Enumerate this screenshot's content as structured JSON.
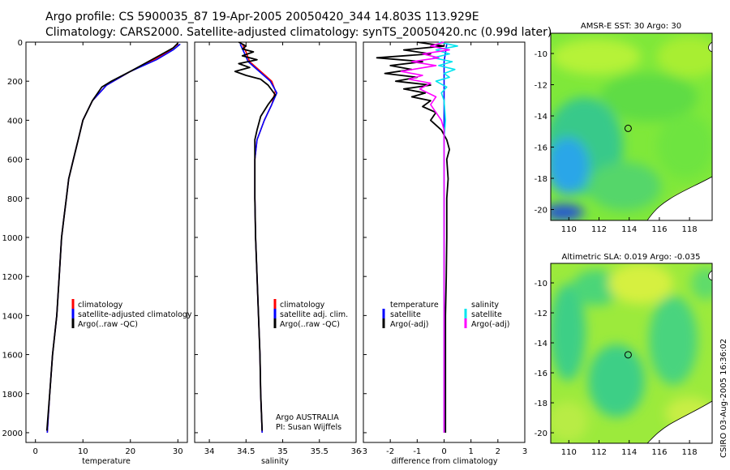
{
  "title_line1": "Argo profile: CS 5900035_87 19-Apr-2005 20050420_344 14.803S 113.929E",
  "title_line2": "Climatology: CARS2000. Satellite-adjusted climatology: synTS_20050420.nc (0.99d later)",
  "credit": "CSIRO 03-Aug-2005 16:36:02",
  "colors": {
    "clim": "#ff0000",
    "sat": "#0000ff",
    "argo": "#000000",
    "cyan": "#00e5ee",
    "magenta": "#ff00ff"
  },
  "chart_data": [
    {
      "name": "temperature-profile",
      "type": "line",
      "xlabel": "temperature",
      "xlim": [
        -2,
        32
      ],
      "ylim": [
        2050,
        0
      ],
      "xticks": [
        "0",
        "10",
        "20",
        "30"
      ],
      "xtick_values": [
        0,
        10,
        20,
        30
      ],
      "yticks": [
        "0",
        "200",
        "400",
        "600",
        "800",
        "1000",
        "1200",
        "1400",
        "1600",
        "1800",
        "2000"
      ],
      "ytick_values": [
        0,
        200,
        400,
        600,
        800,
        1000,
        1200,
        1400,
        1600,
        1800,
        2000
      ],
      "legend": [
        "climatology",
        "satellite-adjusted climatology",
        "Argo(..raw -QC)"
      ],
      "series": [
        {
          "name": "climatology",
          "color": "#ff0000",
          "points": [
            [
              30,
              10
            ],
            [
              28.5,
              40
            ],
            [
              25,
              90
            ],
            [
              20,
              150
            ],
            [
              15,
              220
            ],
            [
              12,
              300
            ],
            [
              10,
              400
            ],
            [
              9,
              500
            ],
            [
              8,
              600
            ],
            [
              7,
              700
            ],
            [
              6.5,
              800
            ],
            [
              6,
              900
            ],
            [
              5.5,
              1000
            ],
            [
              5,
              1200
            ],
            [
              4.5,
              1400
            ],
            [
              3.6,
              1600
            ],
            [
              3,
              1800
            ],
            [
              2.5,
              2000
            ]
          ]
        },
        {
          "name": "satellite-adjusted climatology",
          "color": "#0000ff",
          "points": [
            [
              30.5,
              10
            ],
            [
              29,
              40
            ],
            [
              25.5,
              90
            ],
            [
              20,
              150
            ],
            [
              15,
              220
            ],
            [
              12,
              300
            ],
            [
              10,
              400
            ],
            [
              9,
              500
            ],
            [
              8,
              600
            ],
            [
              7,
              700
            ],
            [
              6.5,
              800
            ],
            [
              6,
              900
            ],
            [
              5.5,
              1000
            ],
            [
              5,
              1200
            ],
            [
              4.5,
              1400
            ],
            [
              3.6,
              1600
            ],
            [
              3,
              1800
            ],
            [
              2.5,
              2000
            ]
          ]
        },
        {
          "name": "Argo(..raw -QC)",
          "color": "#000000",
          "points": [
            [
              30,
              5
            ],
            [
              29,
              30
            ],
            [
              26,
              70
            ],
            [
              23,
              110
            ],
            [
              20,
              150
            ],
            [
              16,
              200
            ],
            [
              14,
              230
            ],
            [
              12,
              300
            ],
            [
              10,
              400
            ],
            [
              9,
              500
            ],
            [
              8,
              600
            ],
            [
              7,
              700
            ],
            [
              6.5,
              800
            ],
            [
              6,
              900
            ],
            [
              5.5,
              1000
            ],
            [
              5,
              1200
            ],
            [
              4.5,
              1400
            ],
            [
              3.6,
              1600
            ],
            [
              3,
              1800
            ],
            [
              2.4,
              1990
            ]
          ]
        }
      ]
    },
    {
      "name": "salinity-profile",
      "type": "line",
      "xlabel": "salinity",
      "xlim": [
        33.8,
        36
      ],
      "ylim": [
        2050,
        0
      ],
      "xticks": [
        "34",
        "34.5",
        "35",
        "35.5",
        "36"
      ],
      "xtick_values": [
        34,
        34.5,
        35,
        35.5,
        36
      ],
      "legend": [
        "climatology",
        "satellite adj. clim.",
        "Argo(..raw -QC)"
      ],
      "annotation": [
        "Argo AUSTRALIA",
        "PI: Susan Wijffels"
      ],
      "series": [
        {
          "name": "climatology",
          "color": "#ff0000",
          "points": [
            [
              34.45,
              10
            ],
            [
              34.5,
              50
            ],
            [
              34.55,
              100
            ],
            [
              34.7,
              150
            ],
            [
              34.85,
              200
            ],
            [
              34.9,
              250
            ],
            [
              34.85,
              320
            ],
            [
              34.75,
              400
            ],
            [
              34.65,
              500
            ],
            [
              34.62,
              600
            ],
            [
              34.62,
              800
            ],
            [
              34.63,
              1000
            ],
            [
              34.65,
              1200
            ],
            [
              34.67,
              1400
            ],
            [
              34.69,
              1600
            ],
            [
              34.7,
              1800
            ],
            [
              34.72,
              2000
            ]
          ]
        },
        {
          "name": "satellite adj. clim.",
          "color": "#0000ff",
          "points": [
            [
              34.42,
              10
            ],
            [
              34.47,
              50
            ],
            [
              34.53,
              100
            ],
            [
              34.68,
              150
            ],
            [
              34.83,
              200
            ],
            [
              34.92,
              260
            ],
            [
              34.85,
              320
            ],
            [
              34.75,
              400
            ],
            [
              34.65,
              500
            ],
            [
              34.62,
              600
            ],
            [
              34.62,
              800
            ],
            [
              34.63,
              1000
            ],
            [
              34.65,
              1200
            ],
            [
              34.67,
              1400
            ],
            [
              34.69,
              1600
            ],
            [
              34.7,
              1800
            ],
            [
              34.72,
              2000
            ]
          ]
        },
        {
          "name": "Argo(..raw -QC)",
          "color": "#000000",
          "points": [
            [
              34.4,
              0
            ],
            [
              34.5,
              20
            ],
            [
              34.45,
              35
            ],
            [
              34.6,
              50
            ],
            [
              34.45,
              70
            ],
            [
              34.65,
              90
            ],
            [
              34.4,
              110
            ],
            [
              34.55,
              130
            ],
            [
              34.35,
              150
            ],
            [
              34.5,
              170
            ],
            [
              34.7,
              190
            ],
            [
              34.8,
              220
            ],
            [
              34.9,
              270
            ],
            [
              34.8,
              320
            ],
            [
              34.7,
              380
            ],
            [
              34.65,
              450
            ],
            [
              34.62,
              500
            ],
            [
              34.62,
              600
            ],
            [
              34.62,
              800
            ],
            [
              34.63,
              1000
            ],
            [
              34.65,
              1200
            ],
            [
              34.67,
              1400
            ],
            [
              34.69,
              1600
            ],
            [
              34.7,
              1800
            ],
            [
              34.72,
              1990
            ]
          ]
        }
      ]
    },
    {
      "name": "difference-profile",
      "type": "line",
      "xlabel": "difference from climatology",
      "xlim": [
        -3,
        3
      ],
      "ylim": [
        2050,
        0
      ],
      "xticks": [
        "-3",
        "-2",
        "-1",
        "0",
        "1",
        "2",
        "3"
      ],
      "xtick_values": [
        -3,
        -2,
        -1,
        0,
        1,
        2,
        3
      ],
      "legend_left": [
        "temperature",
        "satellite",
        "Argo(-adj)"
      ],
      "legend_right": [
        "salinity",
        "satellite",
        "Argo(-adj)"
      ],
      "series": [
        {
          "name": "temperature satellite",
          "color": "#0000ff",
          "points": [
            [
              0.1,
              10
            ],
            [
              0,
              100
            ],
            [
              0,
              200
            ],
            [
              0,
              400
            ],
            [
              0,
              800
            ],
            [
              0,
              1200
            ],
            [
              0,
              1600
            ],
            [
              0,
              2000
            ]
          ]
        },
        {
          "name": "temperature Argo(-adj)",
          "color": "#000000",
          "points": [
            [
              -1,
              0
            ],
            [
              0,
              20
            ],
            [
              -1.5,
              40
            ],
            [
              -0.5,
              60
            ],
            [
              -2.5,
              80
            ],
            [
              -0.8,
              100
            ],
            [
              -2,
              120
            ],
            [
              -1.2,
              140
            ],
            [
              -2.2,
              160
            ],
            [
              -1,
              180
            ],
            [
              -1.8,
              200
            ],
            [
              -0.5,
              220
            ],
            [
              -1.5,
              240
            ],
            [
              -0.7,
              260
            ],
            [
              -1.2,
              280
            ],
            [
              -0.5,
              300
            ],
            [
              -0.8,
              330
            ],
            [
              -0.3,
              360
            ],
            [
              -0.5,
              400
            ],
            [
              -0.1,
              450
            ],
            [
              0.1,
              500
            ],
            [
              0.2,
              550
            ],
            [
              0.1,
              600
            ],
            [
              0.15,
              700
            ],
            [
              0.1,
              800
            ],
            [
              0.1,
              900
            ],
            [
              0.1,
              1000
            ],
            [
              0.08,
              1200
            ],
            [
              0.05,
              1400
            ],
            [
              0.05,
              1600
            ],
            [
              0.05,
              1800
            ],
            [
              0.05,
              2000
            ]
          ]
        },
        {
          "name": "salinity satellite",
          "color": "#00e5ee",
          "points": [
            [
              -0.2,
              0
            ],
            [
              0.5,
              20
            ],
            [
              -0.3,
              40
            ],
            [
              0.2,
              60
            ],
            [
              -0.4,
              80
            ],
            [
              0.3,
              100
            ],
            [
              -0.2,
              120
            ],
            [
              0.4,
              140
            ],
            [
              0,
              160
            ],
            [
              0.2,
              180
            ],
            [
              -0.3,
              200
            ],
            [
              0.1,
              230
            ],
            [
              -0.1,
              260
            ],
            [
              0,
              300
            ],
            [
              0.05,
              400
            ],
            [
              0,
              500
            ],
            [
              0,
              600
            ],
            [
              0,
              800
            ],
            [
              0,
              1000
            ],
            [
              0,
              1200
            ],
            [
              0,
              1400
            ],
            [
              0,
              1600
            ],
            [
              0,
              1800
            ],
            [
              0,
              2000
            ]
          ]
        },
        {
          "name": "salinity Argo(-adj)",
          "color": "#ff00ff",
          "points": [
            [
              0,
              0
            ],
            [
              -0.5,
              20
            ],
            [
              0.2,
              40
            ],
            [
              -0.8,
              60
            ],
            [
              -0.2,
              80
            ],
            [
              -1.2,
              100
            ],
            [
              -0.3,
              120
            ],
            [
              -1.6,
              150
            ],
            [
              -0.8,
              170
            ],
            [
              -1.3,
              190
            ],
            [
              -0.5,
              210
            ],
            [
              -0.9,
              240
            ],
            [
              -0.3,
              280
            ],
            [
              -0.5,
              320
            ],
            [
              -0.3,
              360
            ],
            [
              -0.1,
              400
            ],
            [
              0,
              450
            ],
            [
              0,
              500
            ],
            [
              0,
              600
            ],
            [
              0,
              800
            ],
            [
              0,
              1000
            ],
            [
              0,
              1200
            ],
            [
              0,
              1400
            ],
            [
              0,
              1600
            ],
            [
              0,
              1800
            ],
            [
              0,
              2000
            ]
          ]
        }
      ]
    },
    {
      "name": "sst-map",
      "type": "heatmap",
      "title": "AMSR-E SST: 30 Argo: 30",
      "xlim": [
        108.8,
        119.5
      ],
      "ylim": [
        -20.7,
        -8.7
      ],
      "xticks": [
        "110",
        "112",
        "114",
        "116",
        "118"
      ],
      "xtick_values": [
        110,
        112,
        114,
        116,
        118
      ],
      "yticks": [
        "-10",
        "-12",
        "-14",
        "-16",
        "-18",
        "-20"
      ],
      "ytick_values": [
        -10,
        -12,
        -14,
        -16,
        -18,
        -20
      ],
      "marker": {
        "lon": 113.93,
        "lat": -14.8
      }
    },
    {
      "name": "sla-map",
      "type": "heatmap",
      "title": "Altimetric SLA: 0.019 Argo: -0.035",
      "xlim": [
        108.8,
        119.5
      ],
      "ylim": [
        -20.7,
        -8.7
      ],
      "xticks": [
        "110",
        "112",
        "114",
        "116",
        "118"
      ],
      "xtick_values": [
        110,
        112,
        114,
        116,
        118
      ],
      "yticks": [
        "-10",
        "-12",
        "-14",
        "-16",
        "-18",
        "-20"
      ],
      "ytick_values": [
        -10,
        -12,
        -14,
        -16,
        -18,
        -20
      ],
      "marker": {
        "lon": 113.93,
        "lat": -14.8
      }
    }
  ]
}
